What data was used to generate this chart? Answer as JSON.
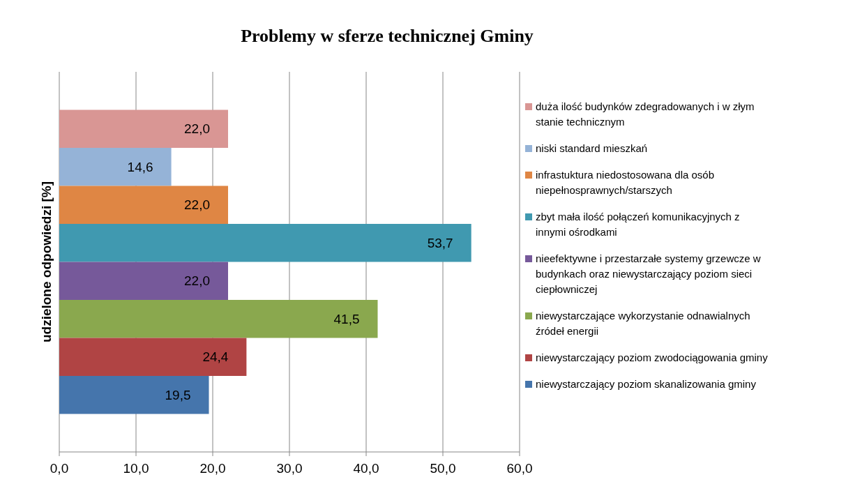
{
  "chart_data": {
    "type": "bar",
    "orientation": "horizontal",
    "title": "Problemy w sferze technicznej Gminy",
    "ylabel": "udzielone odpowiedzi [%]",
    "categories": [
      null
    ],
    "series": [
      {
        "name": "duża ilość budynków zdegradowanych i w złym stanie technicznym",
        "color": "#d99694",
        "values": [
          22.0
        ],
        "value_labels": [
          "22,0"
        ]
      },
      {
        "name": "niski standard mieszkań",
        "color": "#95b3d7",
        "values": [
          14.6
        ],
        "value_labels": [
          "14,6"
        ]
      },
      {
        "name": "infrastuktura niedostosowana dla osób niepełnosprawnych/starszych",
        "color": "#df8644",
        "values": [
          22.0
        ],
        "value_labels": [
          "22,0"
        ]
      },
      {
        "name": "zbyt mała ilość połączeń komunikacyjnych z innymi ośrodkami",
        "color": "#4099b0",
        "values": [
          53.7
        ],
        "value_labels": [
          "53,7"
        ]
      },
      {
        "name": "nieefektywne i przestarzałe systemy grzewcze w budynkach oraz niewystarczający poziom sieci ciepłowniczej",
        "color": "#76599a",
        "values": [
          22.0
        ],
        "value_labels": [
          "22,0"
        ]
      },
      {
        "name": "niewystarczające wykorzystanie odnawialnych źródeł energii",
        "color": "#8aa84e",
        "values": [
          41.5
        ],
        "value_labels": [
          "41,5"
        ]
      },
      {
        "name": "niewystarczający poziom zwodociągowania gminy",
        "color": "#b04444",
        "values": [
          24.4
        ],
        "value_labels": [
          "24,4"
        ]
      },
      {
        "name": "niewystarczający poziom skanalizowania gminy",
        "color": "#4575ac",
        "values": [
          19.5
        ],
        "value_labels": [
          "19,5"
        ]
      }
    ],
    "xlim": [
      0,
      60
    ],
    "xticks": [
      {
        "value": 0,
        "label": "0,0"
      },
      {
        "value": 10,
        "label": "10,0"
      },
      {
        "value": 20,
        "label": "20,0"
      },
      {
        "value": 30,
        "label": "30,0"
      },
      {
        "value": 40,
        "label": "40,0"
      },
      {
        "value": 50,
        "label": "50,0"
      },
      {
        "value": 60,
        "label": "60,0"
      }
    ],
    "grid": "x",
    "legend": "right"
  }
}
